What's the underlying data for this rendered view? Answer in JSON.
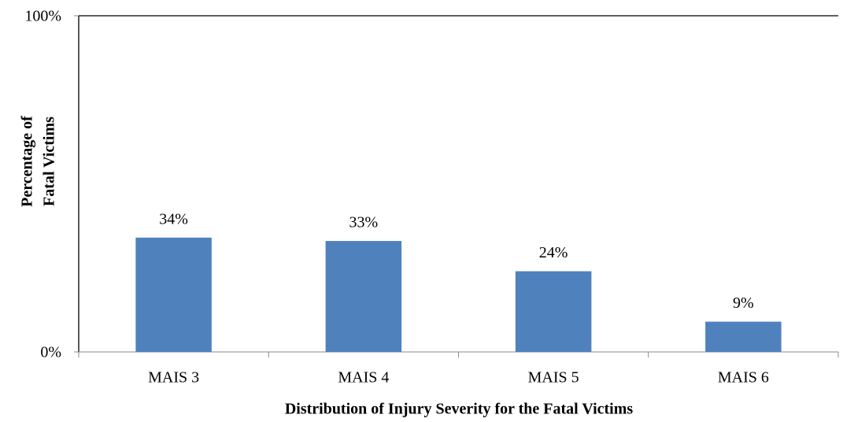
{
  "chart_data": {
    "type": "bar",
    "x_label": "Distribution of Injury Severity for the Fatal Victims",
    "y_label": [
      "Percentage of",
      "Fatal Victims"
    ],
    "categories": [
      "MAIS 3",
      "MAIS 4",
      "MAIS 5",
      "MAIS 6"
    ],
    "values": [
      34,
      33,
      24,
      9
    ],
    "value_labels": [
      "34%",
      "33%",
      "24%",
      "9%"
    ],
    "color": "#4f81bd",
    "ylim": [
      0,
      100
    ],
    "yticks": [
      {
        "value": 0,
        "label": "0%"
      },
      {
        "value": 100,
        "label": "100%"
      }
    ],
    "grid": false
  }
}
